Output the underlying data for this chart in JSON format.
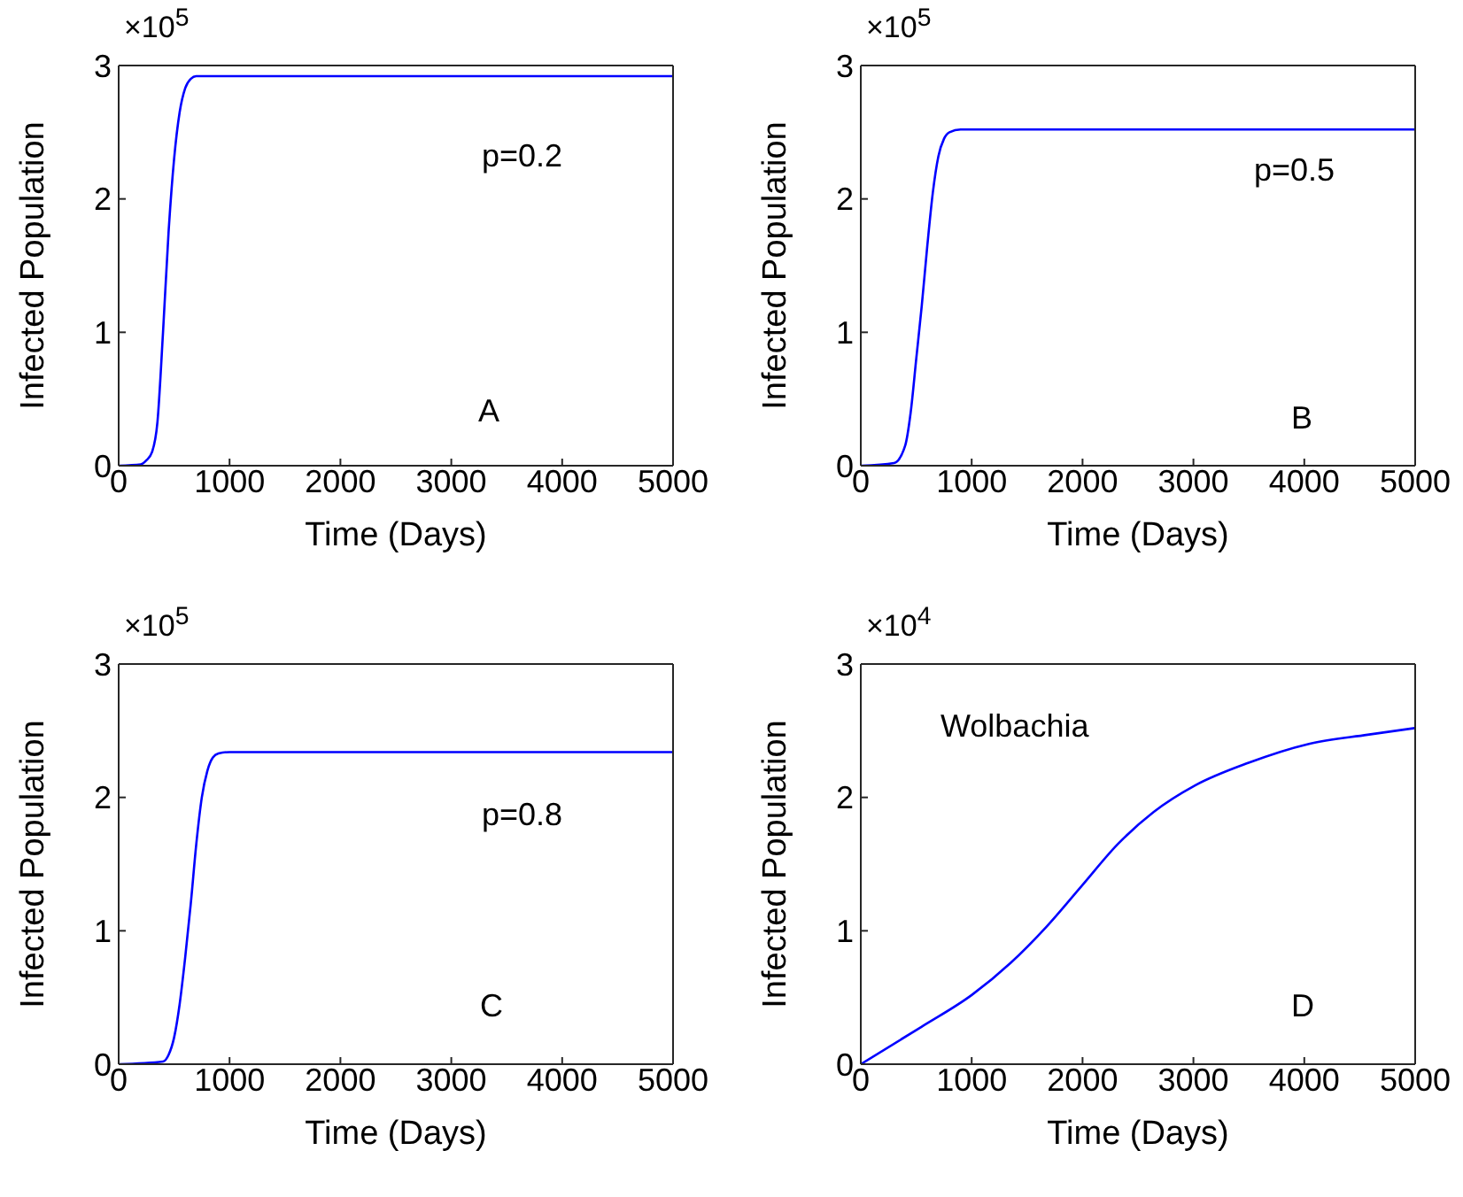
{
  "chart_data": [
    {
      "type": "line",
      "xlabel": "Time (Days)",
      "ylabel": "Infected Population",
      "annotations": [
        "×10$^{5}$",
        "p=0.2",
        "A"
      ],
      "xlim": [
        0,
        5000
      ],
      "xticks": [
        0,
        1000,
        2000,
        3000,
        4000,
        5000
      ],
      "ylim": [
        0,
        3
      ],
      "yticks": [
        0,
        1,
        2,
        3
      ],
      "marker": "none",
      "line_style": "solid",
      "series": [
        {
          "color": "#0000ff",
          "x": [
            0,
            200,
            250,
            300,
            350,
            400,
            450,
            500,
            550,
            600,
            650,
            700,
            800,
            5000
          ],
          "values": [
            0,
            0.01,
            0.04,
            0.1,
            0.33,
            1.0,
            1.75,
            2.3,
            2.65,
            2.83,
            2.9,
            2.92,
            2.92,
            2.92
          ]
        }
      ]
    },
    {
      "type": "line",
      "xlabel": "Time (Days)",
      "ylabel": "Infected Population",
      "annotations": [
        "×10$^{5}$",
        "p=0.5",
        "B"
      ],
      "xlim": [
        0,
        5000
      ],
      "xticks": [
        0,
        1000,
        2000,
        3000,
        4000,
        5000
      ],
      "ylim": [
        0,
        3
      ],
      "yticks": [
        0,
        1,
        2,
        3
      ],
      "marker": "none",
      "line_style": "solid",
      "series": [
        {
          "color": "#0000ff",
          "x": [
            0,
            300,
            400,
            450,
            500,
            550,
            600,
            650,
            700,
            750,
            800,
            900,
            5000
          ],
          "values": [
            0,
            0.02,
            0.15,
            0.4,
            0.8,
            1.2,
            1.65,
            2.05,
            2.32,
            2.45,
            2.5,
            2.52,
            2.52
          ]
        }
      ]
    },
    {
      "type": "line",
      "xlabel": "Time (Days)",
      "ylabel": "Infected Population",
      "annotations": [
        "×10$^{5}$",
        "p=0.8",
        "C"
      ],
      "xlim": [
        0,
        5000
      ],
      "xticks": [
        0,
        1000,
        2000,
        3000,
        4000,
        5000
      ],
      "ylim": [
        0,
        3
      ],
      "yticks": [
        0,
        1,
        2,
        3
      ],
      "marker": "none",
      "line_style": "solid",
      "series": [
        {
          "color": "#0000ff",
          "x": [
            0,
            400,
            450,
            500,
            550,
            600,
            650,
            700,
            750,
            800,
            850,
            900,
            1000,
            5000
          ],
          "values": [
            0,
            0.02,
            0.07,
            0.2,
            0.45,
            0.8,
            1.2,
            1.65,
            2.0,
            2.2,
            2.3,
            2.33,
            2.34,
            2.34
          ]
        }
      ]
    },
    {
      "type": "line",
      "xlabel": "Time (Days)",
      "ylabel": "Infected Population",
      "annotations": [
        "×10$^{4}$",
        "Wolbachia",
        "D"
      ],
      "xlim": [
        0,
        5000
      ],
      "xticks": [
        0,
        1000,
        2000,
        3000,
        4000,
        5000
      ],
      "ylim": [
        0,
        3
      ],
      "yticks": [
        0,
        1,
        2,
        3
      ],
      "marker": "none",
      "line_style": "solid",
      "series": [
        {
          "color": "#0000ff",
          "x": [
            0,
            547,
            1003,
            1352,
            1674,
            1996,
            2318,
            2640,
            3015,
            3498,
            4034,
            4571,
            5000
          ],
          "values": [
            0,
            0.28,
            0.52,
            0.76,
            1.03,
            1.34,
            1.65,
            1.89,
            2.09,
            2.26,
            2.4,
            2.47,
            2.52
          ]
        }
      ]
    }
  ]
}
